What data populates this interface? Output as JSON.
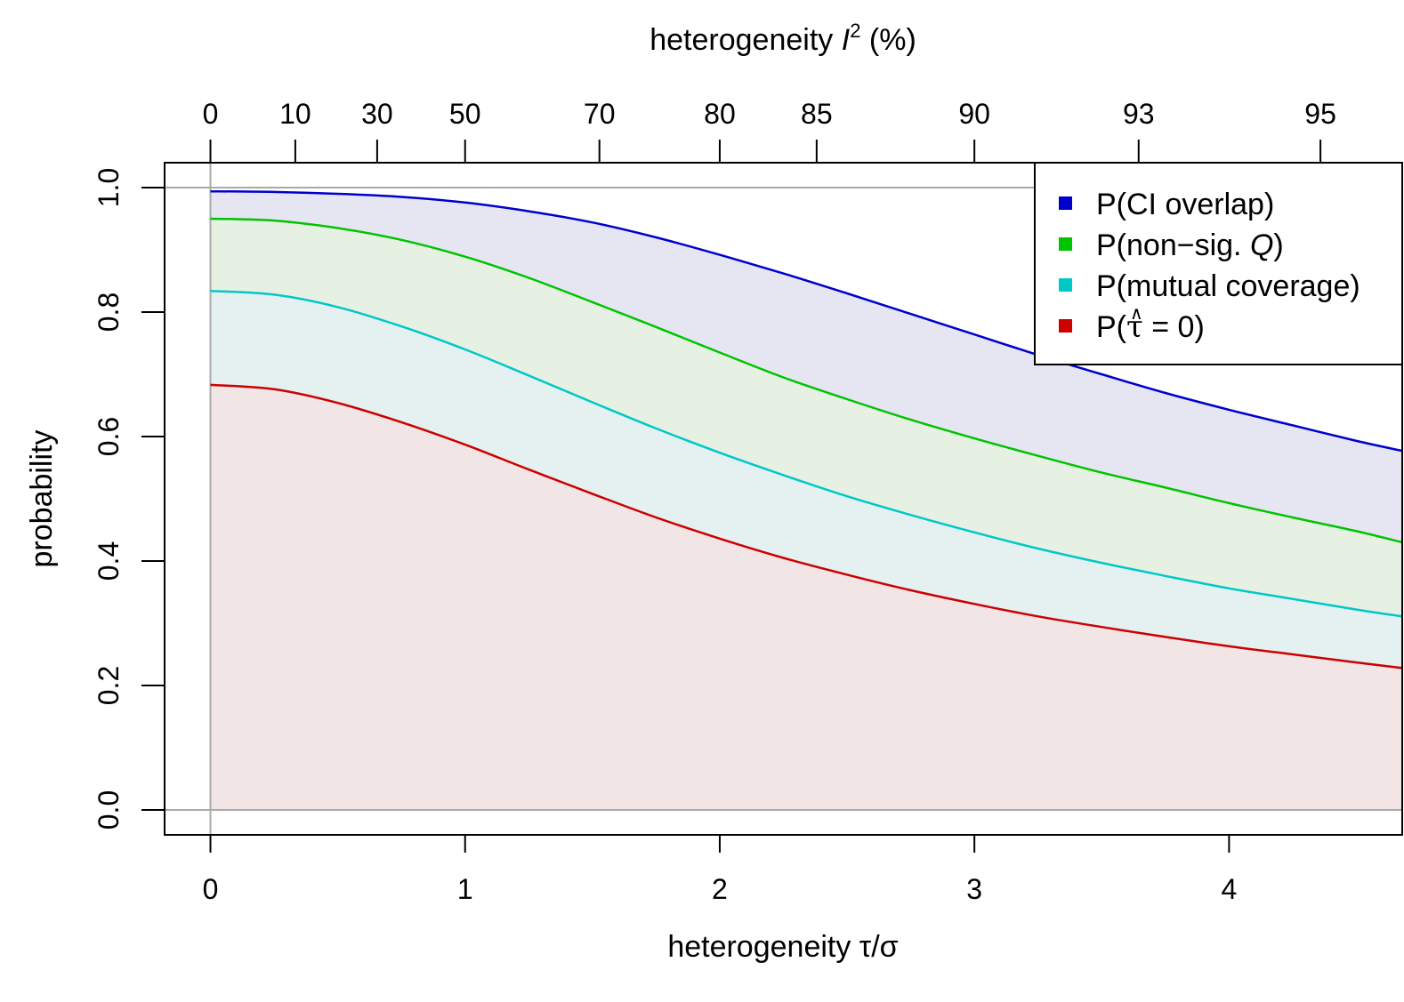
{
  "chart_data": {
    "type": "area",
    "xlabel": "heterogeneity τ/σ",
    "ylabel": "probability",
    "top_axis": {
      "label_prefix": "heterogeneity ",
      "label_var": "I",
      "label_sup": "2",
      "label_suffix": " (%)",
      "ticks": [
        "0",
        "10",
        "30",
        "50",
        "70",
        "80",
        "85",
        "90",
        "93",
        "95"
      ],
      "tick_x": [
        0,
        0.3333,
        0.6547,
        1.0,
        1.5275,
        2.0,
        2.3805,
        3.0,
        3.645,
        4.3589
      ]
    },
    "xlim": [
      -0.18,
      4.68
    ],
    "ylim": [
      -0.04,
      1.04
    ],
    "x_ticks": [
      0,
      1,
      2,
      3,
      4
    ],
    "y_ticks": [
      "0.0",
      "0.2",
      "0.4",
      "0.6",
      "0.8",
      "1.0"
    ],
    "reference_lines": {
      "y": [
        0,
        1
      ],
      "x": [
        0
      ]
    },
    "grid": false,
    "legend_position": "top-right",
    "x": [
      0,
      0.25,
      0.5,
      0.75,
      1.0,
      1.25,
      1.5,
      1.75,
      2.0,
      2.25,
      2.5,
      2.75,
      3.0,
      3.25,
      3.5,
      3.75,
      4.0,
      4.25,
      4.5,
      4.68
    ],
    "series": [
      {
        "name": "P(CI overlap)",
        "color": "#0000cd",
        "fill": "#e6e6f2",
        "values": [
          0.994,
          0.993,
          0.99,
          0.985,
          0.976,
          0.962,
          0.944,
          0.92,
          0.892,
          0.862,
          0.83,
          0.797,
          0.764,
          0.731,
          0.7,
          0.67,
          0.643,
          0.618,
          0.593,
          0.577
        ]
      },
      {
        "name": "P(non−sig. Q)",
        "color": "#00c400",
        "fill": "#e6f1e4",
        "values": [
          0.95,
          0.947,
          0.935,
          0.916,
          0.889,
          0.855,
          0.816,
          0.776,
          0.735,
          0.695,
          0.66,
          0.627,
          0.597,
          0.569,
          0.542,
          0.518,
          0.493,
          0.47,
          0.448,
          0.43
        ]
      },
      {
        "name": "P(mutual coverage)",
        "color": "#00c8c8",
        "fill": "#e5f0f1",
        "values": [
          0.834,
          0.828,
          0.808,
          0.777,
          0.74,
          0.698,
          0.655,
          0.613,
          0.574,
          0.538,
          0.504,
          0.474,
          0.446,
          0.42,
          0.397,
          0.376,
          0.356,
          0.339,
          0.322,
          0.311
        ]
      },
      {
        "name": "P(τ̂ = 0)",
        "color": "#cd0000",
        "fill": "#f2e5e6",
        "values": [
          0.683,
          0.676,
          0.654,
          0.623,
          0.587,
          0.547,
          0.508,
          0.47,
          0.436,
          0.405,
          0.378,
          0.353,
          0.331,
          0.311,
          0.294,
          0.278,
          0.263,
          0.25,
          0.237,
          0.228
        ]
      }
    ],
    "legend": [
      {
        "text": "P(CI overlap)",
        "color": "#0000cd"
      },
      {
        "pre": "P(non−sig. ",
        "ital": "Q",
        "post": ")",
        "color": "#00c400"
      },
      {
        "text": "P(mutual coverage)",
        "color": "#00c8c8"
      },
      {
        "pre": "P(",
        "hat": "∧",
        "sym": "τ",
        "post": " = 0)",
        "color": "#cd0000"
      }
    ]
  }
}
